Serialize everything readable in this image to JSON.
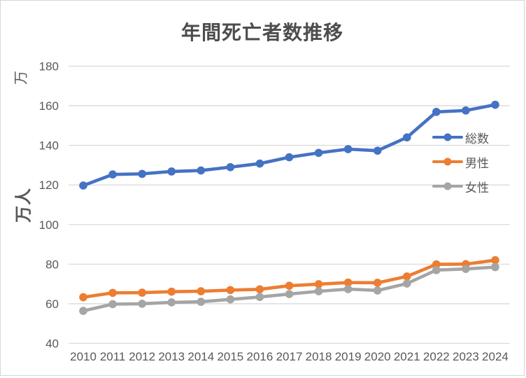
{
  "window": {
    "background": "#ffffff",
    "border_color": "#d6d6d6"
  },
  "chart_data": {
    "type": "line",
    "title": "年間死亡者数推移",
    "y_axis_title": "万人",
    "y_display_unit_label": "万",
    "xlabel": "",
    "ylabel": "万人",
    "ylim": [
      40,
      180
    ],
    "y_ticks": [
      180,
      160,
      140,
      120,
      100,
      80,
      60,
      40
    ],
    "grid": true,
    "gridline_color": "#d9d9d9",
    "tick_text_color": "#595959",
    "title_color": "#4d4d4d",
    "legend_position": "right-inside",
    "categories": [
      "2010",
      "2011",
      "2012",
      "2013",
      "2014",
      "2015",
      "2016",
      "2017",
      "2018",
      "2019",
      "2020",
      "2021",
      "2022",
      "2023",
      "2024"
    ],
    "series": [
      {
        "key": "total",
        "name": "総数",
        "color": "#4472C4",
        "values": [
          119.7,
          125.3,
          125.6,
          126.8,
          127.3,
          129.0,
          130.8,
          134.0,
          136.2,
          138.1,
          137.3,
          144.0,
          156.9,
          157.6,
          160.5
        ]
      },
      {
        "key": "male",
        "name": "男性",
        "color": "#ED7D31",
        "values": [
          63.3,
          65.5,
          65.6,
          66.1,
          66.3,
          66.9,
          67.3,
          69.1,
          69.9,
          70.7,
          70.6,
          73.8,
          79.9,
          80.0,
          82.0
        ]
      },
      {
        "key": "female",
        "name": "女性",
        "color": "#A5A5A5",
        "values": [
          56.4,
          59.8,
          60.0,
          60.7,
          61.0,
          62.2,
          63.4,
          64.9,
          66.3,
          67.4,
          66.7,
          70.2,
          77.0,
          77.6,
          78.5
        ]
      }
    ]
  }
}
